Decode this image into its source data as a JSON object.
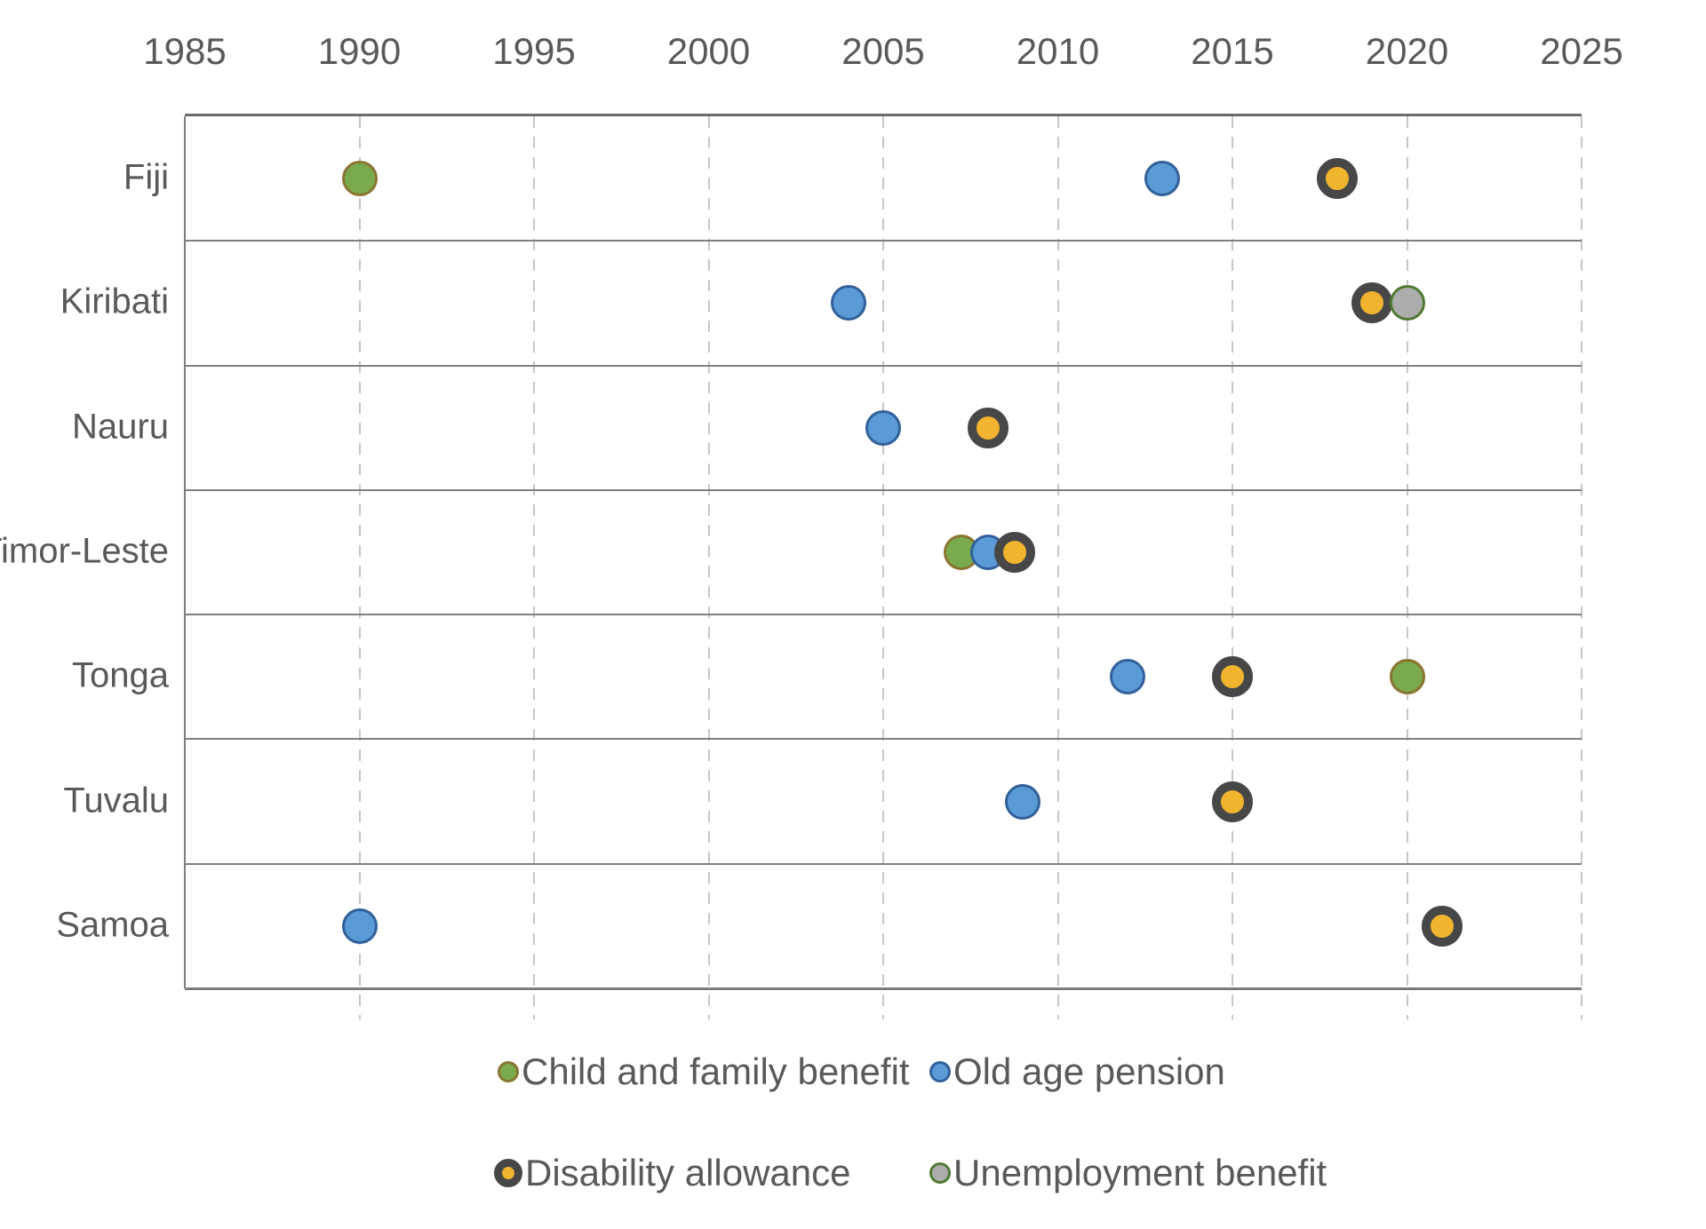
{
  "colors": {
    "background": "#FFFFFF",
    "text": "#595959",
    "gridline_dashed": "#C6C6C6",
    "row_separator": "#7F7F7F",
    "axis_top_border": "#6A6A6A",
    "axis_left_border": "#7F7F7F",
    "axis_bottom_border": "#7A7A7A",
    "series_green_fill": "#79AB4E",
    "series_green_stroke": "#8A7430",
    "series_blue_fill": "#5B9BD5",
    "series_blue_stroke": "#31609A",
    "series_yellow_core": "#F1B42F",
    "series_ring_stroke": "#474747",
    "series_gray_fill": "#ADADAD",
    "series_gray_stroke": "#507A33"
  },
  "chart_data": {
    "type": "scatter",
    "title": "",
    "x_axis": {
      "position": "top",
      "min": 1985,
      "max": 2025,
      "tick_interval": 5,
      "ticks": [
        1985,
        1990,
        1995,
        2000,
        2005,
        2010,
        2015,
        2020,
        2025
      ]
    },
    "countries": [
      "Fiji",
      "Kiribati",
      "Nauru",
      "Timor-Leste",
      "Tonga",
      "Tuvalu",
      "Samoa"
    ],
    "grid": {
      "vertical_dashed_ticks": [
        1990,
        1995,
        2000,
        2005,
        2010,
        2015,
        2020,
        2025
      ],
      "horizontal_row_separators": true
    },
    "series": [
      {
        "name": "Child and family benefit",
        "marker": "circle",
        "fill": "#79AB4E",
        "stroke": "#8A7430",
        "points": [
          {
            "country": "Fiji",
            "year": 1990
          },
          {
            "country": "Timor-Leste",
            "year": 2008,
            "dodge_years": -0.76
          },
          {
            "country": "Tonga",
            "year": 2020
          }
        ]
      },
      {
        "name": "Old age pension",
        "marker": "circle",
        "fill": "#5B9BD5",
        "stroke": "#31609A",
        "points": [
          {
            "country": "Samoa",
            "year": 1990
          },
          {
            "country": "Kiribati",
            "year": 2004
          },
          {
            "country": "Nauru",
            "year": 2005
          },
          {
            "country": "Timor-Leste",
            "year": 2008
          },
          {
            "country": "Tuvalu",
            "year": 2009
          },
          {
            "country": "Tonga",
            "year": 2012
          },
          {
            "country": "Fiji",
            "year": 2013
          }
        ]
      },
      {
        "name": "Disability allowance",
        "marker": "ring",
        "fill": "#F1B42F",
        "stroke": "#474747",
        "points": [
          {
            "country": "Nauru",
            "year": 2008
          },
          {
            "country": "Timor-Leste",
            "year": 2008,
            "dodge_years": 0.76
          },
          {
            "country": "Tonga",
            "year": 2015
          },
          {
            "country": "Tuvalu",
            "year": 2015
          },
          {
            "country": "Fiji",
            "year": 2018
          },
          {
            "country": "Kiribati",
            "year": 2019
          },
          {
            "country": "Samoa",
            "year": 2021
          }
        ]
      },
      {
        "name": "Unemployment benefit",
        "marker": "circle",
        "fill": "#ADADAD",
        "stroke": "#507A33",
        "points": [
          {
            "country": "Kiribati",
            "year": 2020
          }
        ]
      }
    ],
    "legend": {
      "position": "bottom",
      "rows": [
        [
          "Child and family benefit",
          "Old age pension"
        ],
        [
          "Disability allowance",
          "Unemployment benefit"
        ]
      ]
    }
  }
}
